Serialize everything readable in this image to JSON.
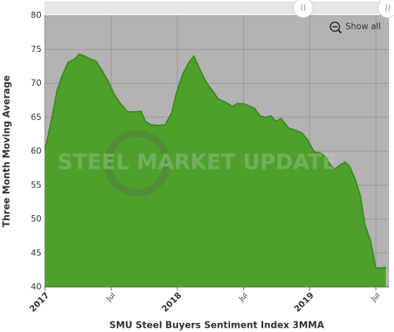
{
  "chart_data": {
    "type": "area",
    "x_title": "SMU Steel Buyers Sentiment Index 3MMA",
    "y_title": "Three Month Moving Average",
    "button": "Show all",
    "watermark": "STEEL MARKET UPDATE",
    "color": "#4ea02c",
    "line_color": "#3a8a1c",
    "grid": true,
    "xlim": [
      0,
      31.2
    ],
    "ylim": [
      40,
      80
    ],
    "yticks": [
      40,
      45,
      50,
      55,
      60,
      65,
      70,
      75,
      80
    ],
    "xticks": [
      {
        "value": 0,
        "label": "2017"
      },
      {
        "value": 6,
        "label": "Jul"
      },
      {
        "value": 12,
        "label": "2018"
      },
      {
        "value": 18,
        "label": "Jul"
      },
      {
        "value": 24,
        "label": "2019"
      },
      {
        "value": 30,
        "label": "Jul"
      }
    ],
    "x": [
      0,
      0.6,
      1.1,
      1.5,
      2.1,
      2.7,
      3.1,
      3.6,
      4.1,
      4.6,
      5.2,
      5.7,
      6.3,
      6.9,
      7.5,
      8.2,
      8.7,
      9.1,
      9.6,
      10.3,
      10.9,
      11.5,
      11.9,
      12.5,
      13.1,
      13.5,
      14.0,
      14.6,
      15.1,
      15.7,
      16.4,
      17.0,
      17.4,
      18.0,
      18.6,
      19.0,
      19.5,
      20.0,
      20.5,
      20.9,
      21.4,
      21.8,
      22.1,
      22.7,
      23.3,
      23.8,
      24.4,
      25.0,
      25.5,
      25.9,
      26.3,
      26.8,
      27.2,
      27.6,
      28.1,
      28.6,
      29.0,
      29.5,
      30.0,
      30.4,
      30.9
    ],
    "values": [
      60.2,
      64.7,
      69.0,
      70.9,
      73.1,
      73.6,
      74.3,
      74.0,
      73.6,
      73.3,
      71.8,
      70.4,
      68.3,
      66.9,
      65.8,
      65.8,
      65.9,
      64.4,
      63.9,
      63.8,
      63.9,
      65.7,
      68.5,
      71.4,
      73.2,
      74.0,
      72.2,
      70.2,
      69.1,
      67.7,
      67.2,
      66.6,
      67.0,
      67.0,
      66.6,
      66.3,
      65.2,
      65.0,
      65.2,
      64.4,
      64.8,
      64.0,
      63.4,
      63.1,
      62.7,
      61.7,
      59.9,
      59.7,
      59.1,
      57.9,
      57.4,
      58.0,
      58.4,
      57.8,
      56.0,
      53.4,
      49.2,
      46.9,
      42.8,
      42.8,
      42.9
    ]
  }
}
